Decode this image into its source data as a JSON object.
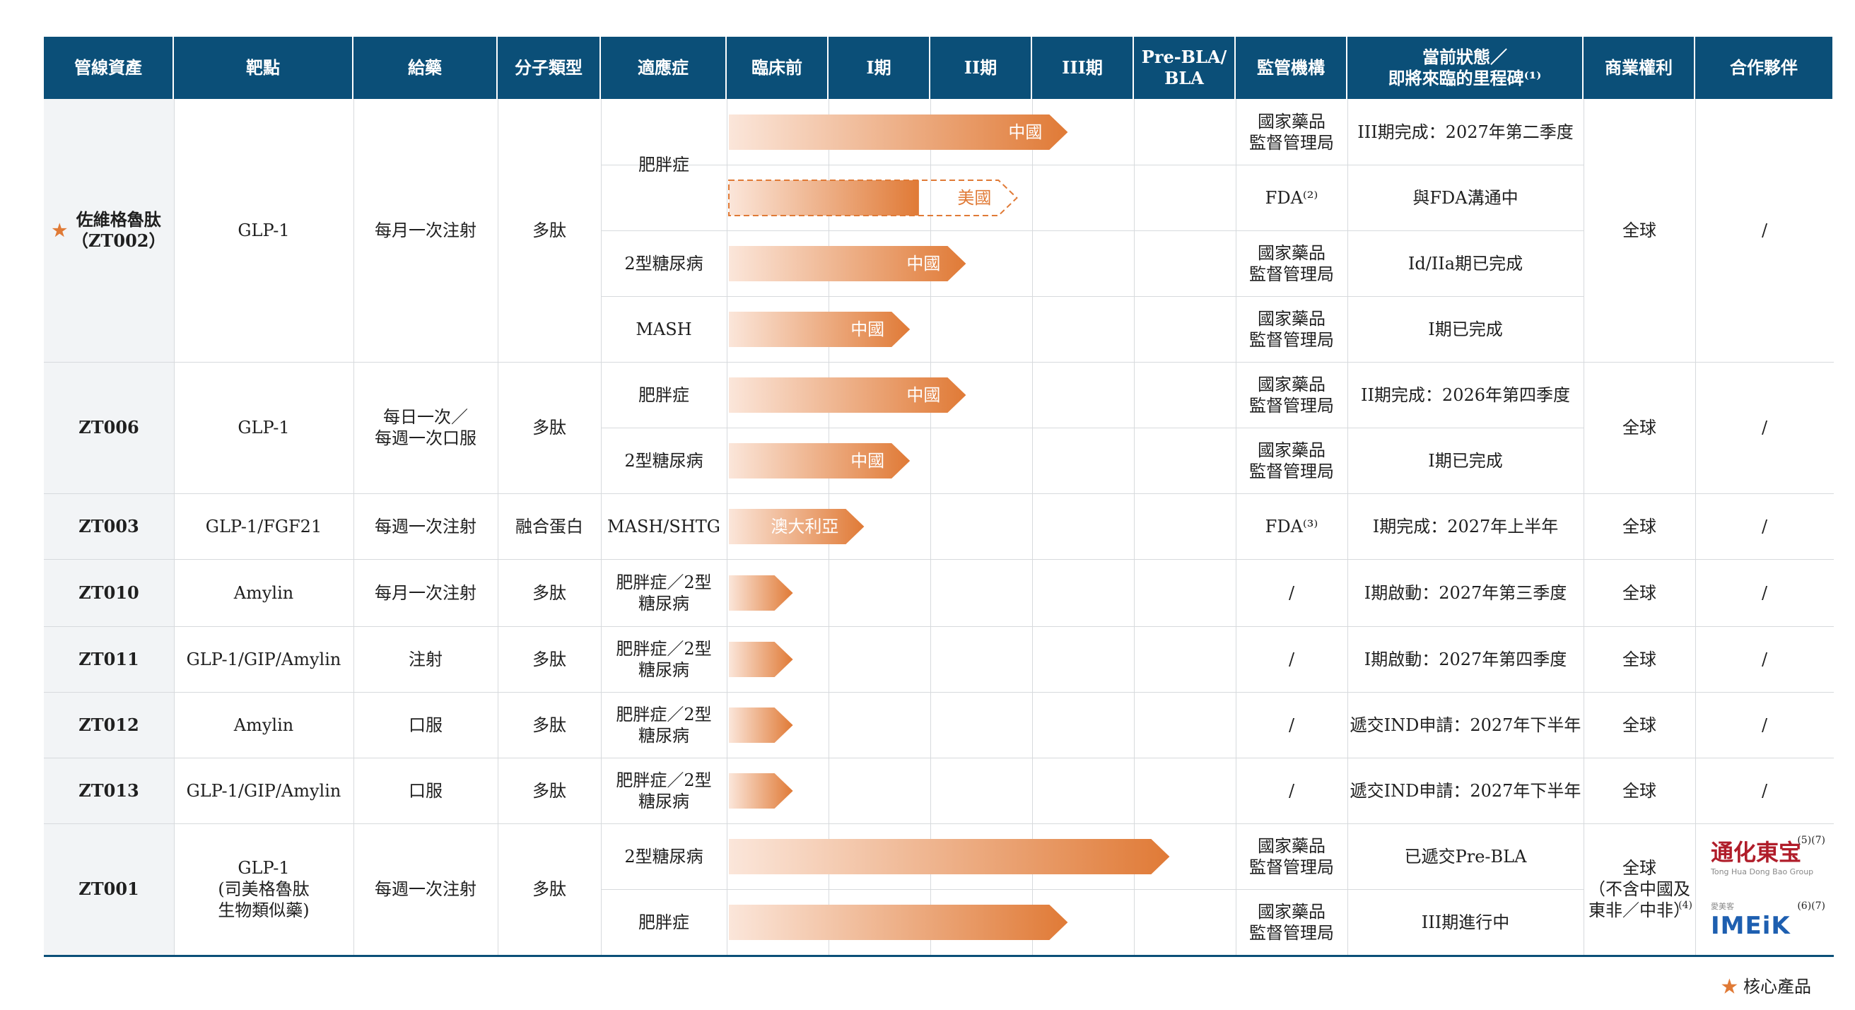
{
  "headers": [
    "管線資產",
    "靶點",
    "給藥",
    "分子類型",
    "適應症",
    "臨床前",
    "I期",
    "II期",
    "III期",
    "Pre-BLA/\nBLA",
    "監管機構",
    "當前狀態／\n即將來臨的里程碑⁽¹⁾",
    "商業權利",
    "合作夥伴"
  ],
  "assets": [
    {
      "name": "佐維格魯肽\n（ZT002）",
      "core": true,
      "target": "GLP-1",
      "route": "每月一次注射",
      "molecule": "多肽",
      "rights": "全球",
      "partner": "/"
    },
    {
      "name": "ZT006",
      "core": false,
      "target": "GLP-1",
      "route": "每日一次／\n每週一次口服",
      "molecule": "多肽",
      "rights": "全球",
      "partner": "/"
    },
    {
      "name": "ZT003",
      "core": false,
      "target": "GLP-1/FGF21",
      "route": "每週一次注射",
      "molecule": "融合蛋白",
      "rights": "全球",
      "partner": "/"
    },
    {
      "name": "ZT010",
      "core": false,
      "target": "Amylin",
      "route": "每月一次注射",
      "molecule": "多肽",
      "rights": "全球",
      "partner": "/"
    },
    {
      "name": "ZT011",
      "core": false,
      "target": "GLP-1/GIP/Amylin",
      "route": "注射",
      "molecule": "多肽",
      "rights": "全球",
      "partner": "/"
    },
    {
      "name": "ZT012",
      "core": false,
      "target": "Amylin",
      "route": "口服",
      "molecule": "多肽",
      "rights": "全球",
      "partner": "/"
    },
    {
      "name": "ZT013",
      "core": false,
      "target": "GLP-1/GIP/Amylin",
      "route": "口服",
      "molecule": "多肽",
      "rights": "全球",
      "partner": "/"
    },
    {
      "name": "ZT001",
      "core": false,
      "target": "GLP-1\n(司美格魯肽\n生物類似藥)",
      "route": "每週一次注射",
      "molecule": "多肽",
      "rights": "全球\n（不含中國及\n東非／中非）",
      "rights_note": "(4)",
      "partner": ""
    }
  ],
  "rows": [
    {
      "indication": "肥胖症",
      "stage_end": 3.35,
      "region": "中國",
      "dashed": false,
      "regulator": "國家藥品\n監督管理局",
      "status": "III期完成：2027年第二季度"
    },
    {
      "indication": "",
      "stage_end": 2.85,
      "region": "美國",
      "dashed": true,
      "regulator": "FDA⁽²⁾",
      "status": "與FDA溝通中"
    },
    {
      "indication": "2型糖尿病",
      "stage_end": 2.35,
      "region": "中國",
      "dashed": false,
      "regulator": "國家藥品\n監督管理局",
      "status": "Id/IIa期已完成"
    },
    {
      "indication": "MASH",
      "stage_end": 1.8,
      "region": "中國",
      "dashed": false,
      "regulator": "國家藥品\n監督管理局",
      "status": "I期已完成"
    },
    {
      "indication": "肥胖症",
      "stage_end": 2.35,
      "region": "中國",
      "dashed": false,
      "regulator": "國家藥品\n監督管理局",
      "status": "II期完成：2026年第四季度"
    },
    {
      "indication": "2型糖尿病",
      "stage_end": 1.8,
      "region": "中國",
      "dashed": false,
      "regulator": "國家藥品\n監督管理局",
      "status": "I期已完成"
    },
    {
      "indication": "MASH/SHTG",
      "stage_end": 1.35,
      "region": "澳大利亞",
      "dashed": false,
      "regulator": "FDA⁽³⁾",
      "status": "I期完成：2027年上半年"
    },
    {
      "indication": "肥胖症／2型\n糖尿病",
      "stage_end": 0.65,
      "region": "",
      "dashed": false,
      "regulator": "/",
      "status": "I期啟動：2027年第三季度"
    },
    {
      "indication": "肥胖症／2型\n糖尿病",
      "stage_end": 0.65,
      "region": "",
      "dashed": false,
      "regulator": "/",
      "status": "I期啟動：2027年第四季度"
    },
    {
      "indication": "肥胖症／2型\n糖尿病",
      "stage_end": 0.65,
      "region": "",
      "dashed": false,
      "regulator": "/",
      "status": "遞交IND申請：2027年下半年"
    },
    {
      "indication": "肥胖症／2型\n糖尿病",
      "stage_end": 0.65,
      "region": "",
      "dashed": false,
      "regulator": "/",
      "status": "遞交IND申請：2027年下半年"
    },
    {
      "indication": "2型糖尿病",
      "stage_end": 4.35,
      "region": "",
      "dashed": false,
      "regulator": "國家藥品\n監督管理局",
      "status": "已遞交Pre-BLA"
    },
    {
      "indication": "肥胖症",
      "stage_end": 3.35,
      "region": "",
      "dashed": false,
      "regulator": "國家藥品\n監督管理局",
      "status": "III期進行中"
    }
  ],
  "partners": [
    {
      "logo": "通化東宝",
      "sub": "Tong Hua Dong Bao Group",
      "note": "(5)(7)"
    },
    {
      "logo": "IMEiK",
      "sub": "愛美客",
      "note": "(6)(7)"
    }
  ],
  "legend": {
    "star": "★",
    "label": "核心產品"
  },
  "colors": {
    "header_bg": "#0b4f78",
    "bar_start": "#fbe6da",
    "bar_end": "#e07a36",
    "grid": "#d7dadd",
    "first_col_bg": "#f2f4f6"
  }
}
